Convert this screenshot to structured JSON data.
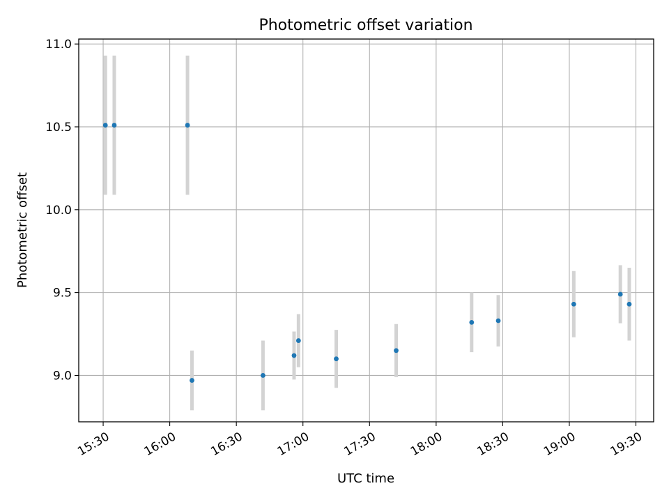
{
  "chart_data": {
    "type": "scatter",
    "title": "Photometric offset variation",
    "xlabel": "UTC time",
    "ylabel": "Photometric offset",
    "xlim": [
      "15:19",
      "19:38"
    ],
    "ylim": [
      8.72,
      11.03
    ],
    "xticks": [
      "15:30",
      "16:00",
      "16:30",
      "17:00",
      "17:30",
      "18:00",
      "18:30",
      "19:00",
      "19:30"
    ],
    "yticks": [
      9.0,
      9.5,
      10.0,
      10.5,
      11.0
    ],
    "ytick_labels": [
      "9.0",
      "9.5",
      "10.0",
      "10.5",
      "11.0"
    ],
    "grid": true,
    "colors": {
      "point": "#1f77b4",
      "errorbar": "#d3d3d3",
      "grid": "#b0b0b0"
    },
    "points": [
      {
        "x": "15:31",
        "y": 10.51,
        "yerr": 0.42
      },
      {
        "x": "15:35",
        "y": 10.51,
        "yerr": 0.42
      },
      {
        "x": "16:08",
        "y": 10.51,
        "yerr": 0.42
      },
      {
        "x": "16:10",
        "y": 8.97,
        "yerr": 0.18
      },
      {
        "x": "16:42",
        "y": 9.0,
        "yerr": 0.21
      },
      {
        "x": "16:56",
        "y": 9.12,
        "yerr": 0.145
      },
      {
        "x": "16:58",
        "y": 9.21,
        "yerr": 0.16
      },
      {
        "x": "17:15",
        "y": 9.1,
        "yerr": 0.175
      },
      {
        "x": "17:42",
        "y": 9.15,
        "yerr": 0.16
      },
      {
        "x": "18:16",
        "y": 9.32,
        "yerr": 0.18
      },
      {
        "x": "18:28",
        "y": 9.33,
        "yerr": 0.155
      },
      {
        "x": "19:02",
        "y": 9.43,
        "yerr": 0.2
      },
      {
        "x": "19:23",
        "y": 9.49,
        "yerr": 0.175
      },
      {
        "x": "19:27",
        "y": 9.43,
        "yerr": 0.22
      }
    ]
  }
}
